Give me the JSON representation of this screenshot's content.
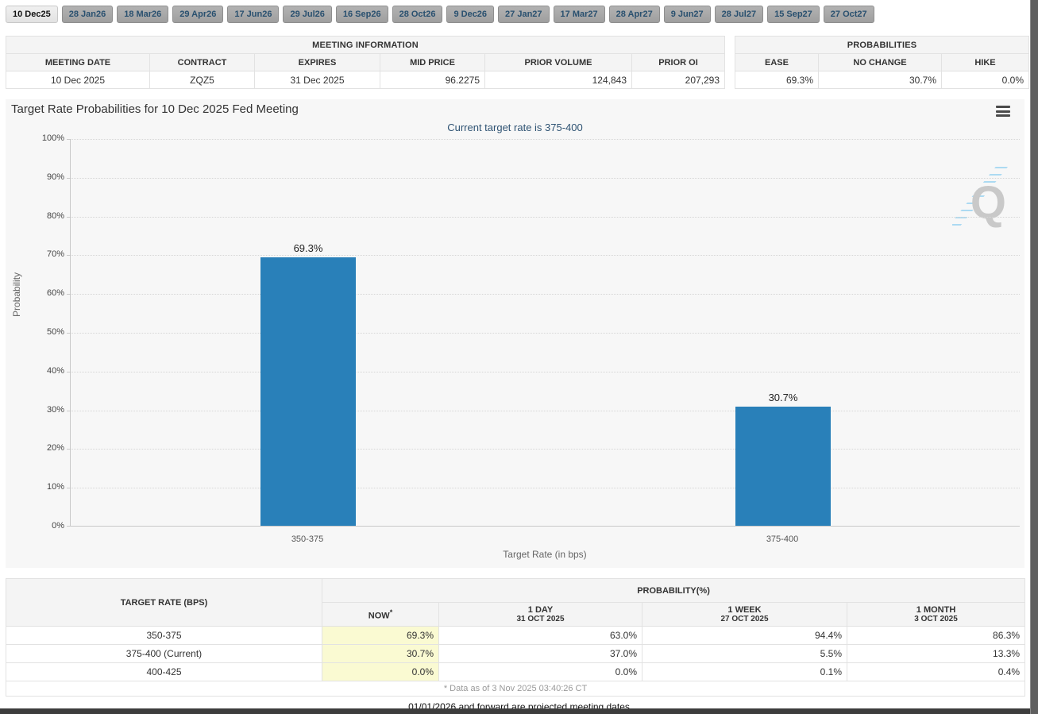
{
  "tabs": {
    "active": "10 Dec25",
    "items": [
      "10 Dec25",
      "28 Jan26",
      "18 Mar26",
      "29 Apr26",
      "17 Jun26",
      "29 Jul26",
      "16 Sep26",
      "28 Oct26",
      "9 Dec26",
      "27 Jan27",
      "17 Mar27",
      "28 Apr27",
      "9 Jun27",
      "28 Jul27",
      "15 Sep27",
      "27 Oct27"
    ]
  },
  "meeting_info": {
    "title": "MEETING INFORMATION",
    "headers": [
      "MEETING DATE",
      "CONTRACT",
      "EXPIRES",
      "MID PRICE",
      "PRIOR VOLUME",
      "PRIOR OI"
    ],
    "values": [
      "10 Dec 2025",
      "ZQZ5",
      "31 Dec 2025",
      "96.2275",
      "124,843",
      "207,293"
    ]
  },
  "probabilities": {
    "title": "PROBABILITIES",
    "headers": [
      "EASE",
      "NO CHANGE",
      "HIKE"
    ],
    "values": [
      "69.3%",
      "30.7%",
      "0.0%"
    ]
  },
  "chart": {
    "title": "Target Rate Probabilities for 10 Dec 2025 Fed Meeting",
    "subtitle": "Current target rate is 375-400",
    "menu_icon": "hamburger-menu-icon",
    "watermark_letter": "Q"
  },
  "chart_data": {
    "type": "bar",
    "title": "Target Rate Probabilities for 10 Dec 2025 Fed Meeting",
    "subtitle": "Current target rate is 375-400",
    "categories": [
      "350-375",
      "375-400"
    ],
    "values": [
      69.3,
      30.7
    ],
    "value_labels": [
      "69.3%",
      "30.7%"
    ],
    "xlabel": "Target Rate (in bps)",
    "ylabel": "Probability",
    "ylim": [
      0,
      100
    ],
    "ytick_step": 10,
    "ytick_suffix": "%",
    "grid": "horizontal-dotted",
    "legend": "none",
    "bar_color": "#2980b9"
  },
  "history_table": {
    "col1_header": "TARGET RATE (BPS)",
    "group_header": "PROBABILITY(%)",
    "sub_headers": {
      "now": {
        "label": "NOW",
        "sup": "*"
      },
      "day": {
        "label": "1 DAY",
        "date": "31 OCT 2025"
      },
      "week": {
        "label": "1 WEEK",
        "date": "27 OCT 2025"
      },
      "month": {
        "label": "1 MONTH",
        "date": "3 OCT 2025"
      }
    },
    "rows": [
      {
        "rate": "350-375",
        "now": "69.3%",
        "day": "63.0%",
        "week": "94.4%",
        "month": "86.3%"
      },
      {
        "rate": "375-400 (Current)",
        "now": "30.7%",
        "day": "37.0%",
        "week": "5.5%",
        "month": "13.3%"
      },
      {
        "rate": "400-425",
        "now": "0.0%",
        "day": "0.0%",
        "week": "0.1%",
        "month": "0.4%"
      }
    ],
    "footnote": "* Data as of 3 Nov 2025 03:40:26 CT"
  },
  "projected_note": "01/01/2026 and forward are projected meeting dates",
  "colors": {
    "bar": "#2980b9",
    "now_highlight": "#fafad2",
    "subtitle_text": "#2f5373",
    "chart_background": "#f7f7f7"
  }
}
